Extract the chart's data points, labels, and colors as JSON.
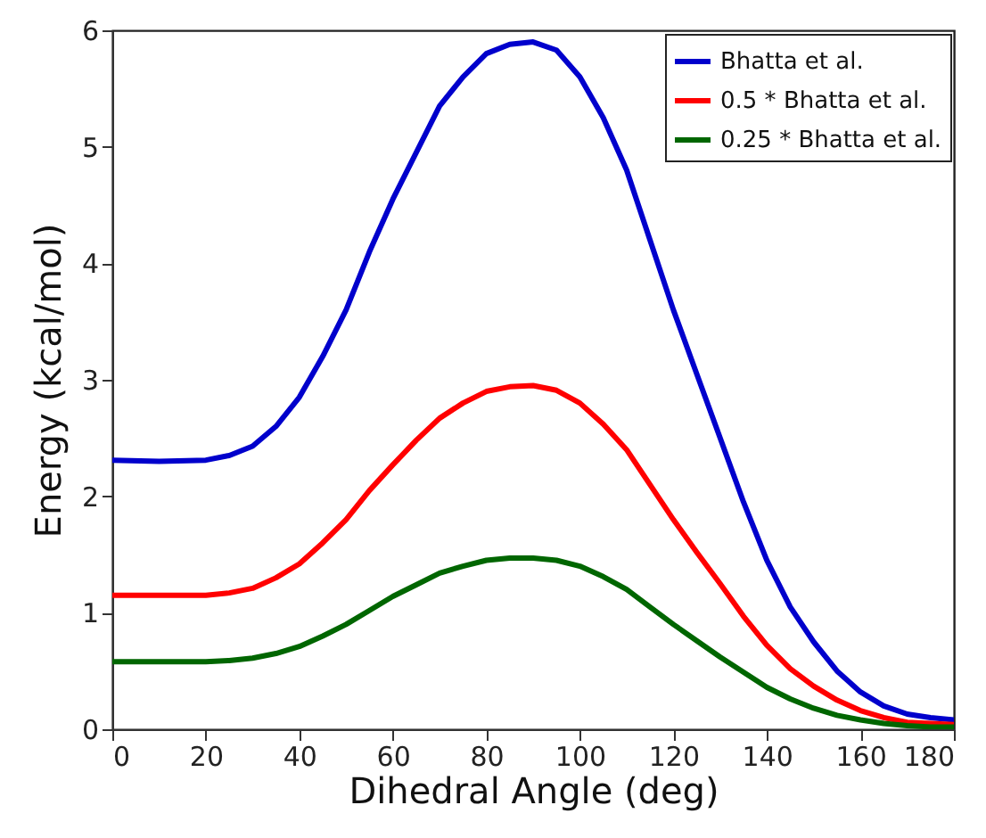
{
  "chart_data": {
    "type": "line",
    "xlabel": "Dihedral Angle (deg)",
    "ylabel": "Energy (kcal/mol)",
    "x": [
      0,
      10,
      20,
      25,
      30,
      35,
      40,
      45,
      50,
      55,
      60,
      65,
      70,
      75,
      80,
      85,
      90,
      95,
      100,
      105,
      110,
      115,
      120,
      125,
      130,
      135,
      140,
      145,
      150,
      155,
      160,
      165,
      170,
      175,
      180
    ],
    "series": [
      {
        "name": "Bhatta et al.",
        "color": "#0000cc",
        "values": [
          2.31,
          2.3,
          2.31,
          2.35,
          2.43,
          2.6,
          2.85,
          3.2,
          3.6,
          4.1,
          4.55,
          4.95,
          5.35,
          5.6,
          5.8,
          5.88,
          5.9,
          5.83,
          5.6,
          5.25,
          4.8,
          4.2,
          3.6,
          3.05,
          2.5,
          1.95,
          1.45,
          1.05,
          0.75,
          0.5,
          0.32,
          0.2,
          0.13,
          0.1,
          0.08
        ]
      },
      {
        "name": "0.5 * Bhatta et al.",
        "color": "#ff0000",
        "values": [
          1.15,
          1.15,
          1.15,
          1.17,
          1.21,
          1.3,
          1.42,
          1.6,
          1.8,
          2.05,
          2.27,
          2.48,
          2.67,
          2.8,
          2.9,
          2.94,
          2.95,
          2.91,
          2.8,
          2.62,
          2.4,
          2.1,
          1.8,
          1.52,
          1.25,
          0.97,
          0.72,
          0.52,
          0.37,
          0.25,
          0.16,
          0.1,
          0.06,
          0.05,
          0.04
        ]
      },
      {
        "name": "0.25 * Bhatta et al.",
        "color": "#006600",
        "values": [
          0.58,
          0.58,
          0.58,
          0.59,
          0.61,
          0.65,
          0.71,
          0.8,
          0.9,
          1.02,
          1.14,
          1.24,
          1.34,
          1.4,
          1.45,
          1.47,
          1.47,
          1.45,
          1.4,
          1.31,
          1.2,
          1.05,
          0.9,
          0.76,
          0.62,
          0.49,
          0.36,
          0.26,
          0.18,
          0.12,
          0.08,
          0.05,
          0.03,
          0.02,
          0.02
        ]
      }
    ],
    "xlim": [
      0,
      180
    ],
    "xticks": [
      0,
      20,
      40,
      60,
      80,
      100,
      120,
      140,
      160,
      180
    ],
    "ylim": [
      0,
      6
    ],
    "yticks": [
      0,
      1,
      2,
      3,
      4,
      5,
      6
    ],
    "legend": "top right",
    "grid": false,
    "line_style": "solid"
  }
}
